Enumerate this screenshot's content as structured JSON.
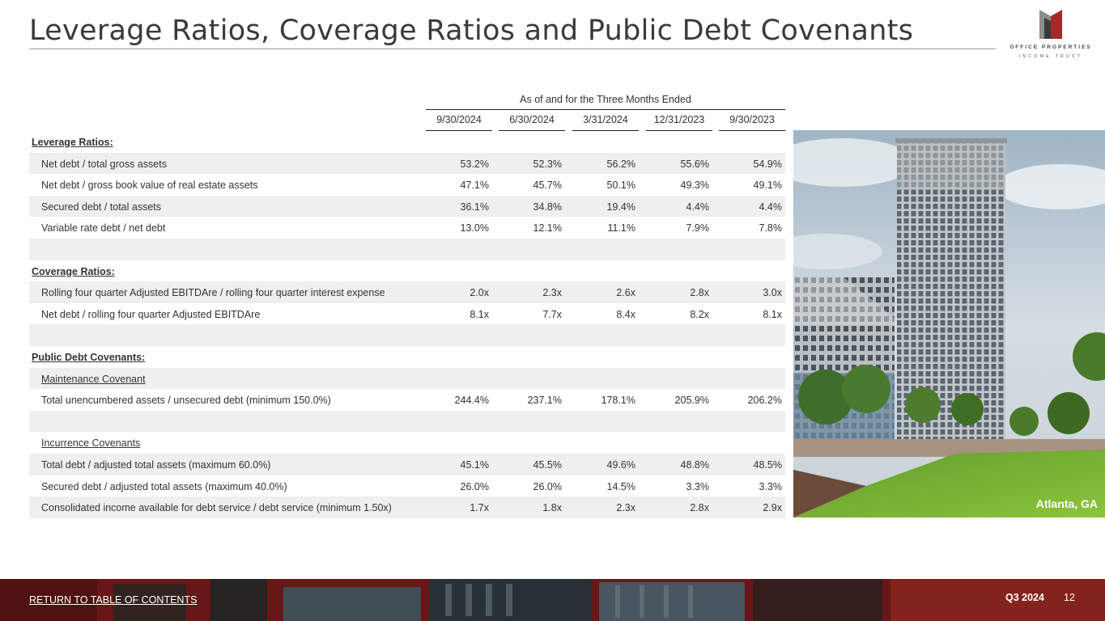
{
  "page": {
    "title": "Leverage Ratios, Coverage Ratios and Public Debt Covenants"
  },
  "logo": {
    "line1": "OFFICE PROPERTIES",
    "line2": "INCOME TRUST",
    "colors": {
      "dark": "#3b3b3b",
      "red": "#a32a2a",
      "light": "#8d8d8d"
    }
  },
  "table": {
    "span_header": "As of and for the Three Months Ended",
    "columns": [
      "9/30/2024",
      "6/30/2024",
      "3/31/2024",
      "12/31/2023",
      "9/30/2023"
    ],
    "rows": [
      {
        "kind": "section",
        "label": "Leverage Ratios:",
        "values": []
      },
      {
        "kind": "data",
        "label": "Net debt / total gross assets",
        "values": [
          "53.2%",
          "52.3%",
          "56.2%",
          "55.6%",
          "54.9%"
        ]
      },
      {
        "kind": "data",
        "label": "Net debt / gross book value of real estate assets",
        "values": [
          "47.1%",
          "45.7%",
          "50.1%",
          "49.3%",
          "49.1%"
        ]
      },
      {
        "kind": "data",
        "label": "Secured debt / total assets",
        "values": [
          "36.1%",
          "34.8%",
          "19.4%",
          "4.4%",
          "4.4%"
        ]
      },
      {
        "kind": "data",
        "label": "Variable rate debt / net debt",
        "values": [
          "13.0%",
          "12.1%",
          "11.1%",
          "7.9%",
          "7.8%"
        ]
      },
      {
        "kind": "blank",
        "label": "",
        "values": []
      },
      {
        "kind": "section",
        "label": "Coverage Ratios:",
        "values": []
      },
      {
        "kind": "data",
        "label": "Rolling four quarter Adjusted EBITDAre / rolling four quarter interest expense",
        "values": [
          "2.0x",
          "2.3x",
          "2.6x",
          "2.8x",
          "3.0x"
        ]
      },
      {
        "kind": "data",
        "label": "Net debt / rolling four quarter Adjusted EBITDAre",
        "values": [
          "8.1x",
          "7.7x",
          "8.4x",
          "8.2x",
          "8.1x"
        ]
      },
      {
        "kind": "blank",
        "label": "",
        "values": []
      },
      {
        "kind": "section",
        "label": "Public Debt Covenants:",
        "values": []
      },
      {
        "kind": "sub",
        "label": "Maintenance Covenant",
        "values": []
      },
      {
        "kind": "data",
        "label": "Total unencumbered assets / unsecured debt (minimum 150.0%)",
        "values": [
          "244.4%",
          "237.1%",
          "178.1%",
          "205.9%",
          "206.2%"
        ]
      },
      {
        "kind": "blank",
        "label": "",
        "values": []
      },
      {
        "kind": "sub",
        "label": "Incurrence Covenants",
        "values": []
      },
      {
        "kind": "data",
        "label": "Total debt / adjusted total assets (maximum 60.0%)",
        "values": [
          "45.1%",
          "45.5%",
          "49.6%",
          "48.8%",
          "48.5%"
        ]
      },
      {
        "kind": "data",
        "label": "Secured debt / adjusted total assets (maximum 40.0%)",
        "values": [
          "26.0%",
          "26.0%",
          "14.5%",
          "3.3%",
          "3.3%"
        ]
      },
      {
        "kind": "data",
        "label": "Consolidated income available for debt service / debt service (minimum 1.50x)",
        "values": [
          "1.7x",
          "1.8x",
          "2.3x",
          "2.8x",
          "2.9x"
        ]
      }
    ]
  },
  "photo": {
    "caption": "Atlanta, GA"
  },
  "footer": {
    "link": "RETURN TO TABLE OF CONTENTS",
    "quarter": "Q3 2024",
    "page_number": "12",
    "accent": "#8b1f1f"
  }
}
